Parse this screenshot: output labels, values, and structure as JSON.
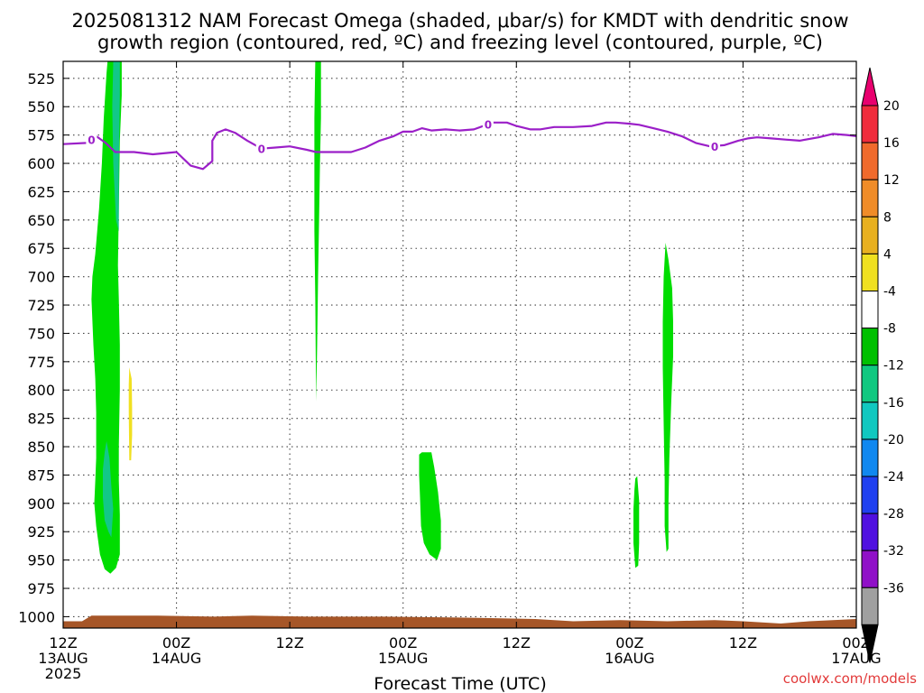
{
  "chart_data": {
    "type": "heatmap",
    "title_line1": "2025081312 NAM Forecast Omega (shaded, μbar/s) for KMDT with dendritic snow",
    "title_line2": "growth region (contoured, red, ºC) and freezing level (contoured, purple, ºC)",
    "xlabel": "Forecast Time (UTC)",
    "credit": "coolwx.com/models",
    "x_range_hours": [
      0,
      84
    ],
    "y_range_mb": [
      1010,
      510
    ],
    "y_ticks": [
      525,
      550,
      575,
      600,
      625,
      650,
      675,
      700,
      725,
      750,
      775,
      800,
      825,
      850,
      875,
      900,
      925,
      950,
      975,
      1000
    ],
    "x_ticks": [
      {
        "hour": 0,
        "line1": "12Z",
        "line2": "13AUG",
        "line3": "2025"
      },
      {
        "hour": 12,
        "line1": "00Z",
        "line2": "14AUG",
        "line3": ""
      },
      {
        "hour": 24,
        "line1": "12Z",
        "line2": "",
        "line3": ""
      },
      {
        "hour": 36,
        "line1": "00Z",
        "line2": "15AUG",
        "line3": ""
      },
      {
        "hour": 48,
        "line1": "12Z",
        "line2": "",
        "line3": ""
      },
      {
        "hour": 60,
        "line1": "00Z",
        "line2": "16AUG",
        "line3": ""
      },
      {
        "hour": 72,
        "line1": "12Z",
        "line2": "",
        "line3": ""
      },
      {
        "hour": 84,
        "line1": "00Z",
        "line2": "17AUG",
        "line3": ""
      }
    ],
    "colorbar": {
      "labels": [
        20,
        16,
        12,
        8,
        4,
        -4,
        -8,
        -12,
        -16,
        -20,
        -24,
        -28,
        -32,
        -36
      ],
      "colors": [
        "#e8006e",
        "#f02c3c",
        "#f06a2c",
        "#f08c28",
        "#e8b020",
        "#f0e020",
        "#ffffff",
        "#00c000",
        "#10c880",
        "#10c8c0",
        "#1088f0",
        "#2040f0",
        "#5010e0",
        "#9010c8",
        "#a0a0a0",
        "#000000"
      ]
    },
    "omega_regions": [
      {
        "level": "-4 to -8",
        "color": "#00dd00",
        "points": [
          [
            5.4,
            510
          ],
          [
            6.2,
            510
          ],
          [
            6.2,
            540
          ],
          [
            6.0,
            580
          ],
          [
            5.9,
            640
          ],
          [
            5.8,
            690
          ],
          [
            5.9,
            720
          ],
          [
            6.0,
            760
          ],
          [
            6.0,
            800
          ],
          [
            5.9,
            850
          ],
          [
            5.9,
            880
          ],
          [
            6.0,
            910
          ],
          [
            6.0,
            945
          ],
          [
            5.6,
            957
          ],
          [
            5.0,
            962
          ],
          [
            4.4,
            958
          ],
          [
            3.9,
            945
          ],
          [
            3.5,
            920
          ],
          [
            3.3,
            900
          ],
          [
            3.4,
            880
          ],
          [
            3.5,
            860
          ],
          [
            3.5,
            820
          ],
          [
            3.4,
            790
          ],
          [
            3.2,
            760
          ],
          [
            3.0,
            720
          ],
          [
            3.1,
            700
          ],
          [
            3.4,
            680
          ],
          [
            3.8,
            640
          ],
          [
            4.1,
            600
          ],
          [
            4.3,
            560
          ],
          [
            4.6,
            520
          ],
          [
            4.7,
            510
          ]
        ]
      },
      {
        "level": "-8 to -12",
        "color": "#12c888",
        "points": [
          [
            5.3,
            510
          ],
          [
            6.0,
            510
          ],
          [
            6.0,
            540
          ],
          [
            5.9,
            600
          ],
          [
            5.9,
            660
          ],
          [
            5.6,
            650
          ],
          [
            5.3,
            600
          ],
          [
            5.2,
            550
          ]
        ]
      },
      {
        "level": "-8 to -12",
        "color": "#12c888",
        "points": [
          [
            4.2,
            870
          ],
          [
            4.4,
            855
          ],
          [
            4.6,
            845
          ],
          [
            4.9,
            860
          ],
          [
            5.1,
            885
          ],
          [
            5.3,
            905
          ],
          [
            5.1,
            930
          ],
          [
            4.8,
            925
          ],
          [
            4.4,
            915
          ],
          [
            4.2,
            895
          ]
        ]
      },
      {
        "level": "-4 to -8",
        "color": "#00dd00",
        "points": [
          [
            26.7,
            510
          ],
          [
            27.3,
            510
          ],
          [
            27.3,
            560
          ],
          [
            27.2,
            600
          ],
          [
            27.1,
            650
          ],
          [
            27.0,
            700
          ],
          [
            26.9,
            760
          ],
          [
            26.8,
            810
          ],
          [
            26.75,
            770
          ],
          [
            26.7,
            720
          ],
          [
            26.6,
            660
          ],
          [
            26.6,
            600
          ],
          [
            26.6,
            560
          ]
        ]
      },
      {
        "level": "-4 to -8",
        "color": "#00dd00",
        "points": [
          [
            37.7,
            857
          ],
          [
            38.0,
            855
          ],
          [
            39.0,
            855
          ],
          [
            39.3,
            868
          ],
          [
            39.7,
            890
          ],
          [
            40.0,
            915
          ],
          [
            40.0,
            940
          ],
          [
            39.6,
            950
          ],
          [
            38.8,
            945
          ],
          [
            38.2,
            935
          ],
          [
            37.9,
            920
          ],
          [
            37.8,
            895
          ],
          [
            37.7,
            875
          ]
        ]
      },
      {
        "level": "-4 to -8",
        "color": "#00dd00",
        "points": [
          [
            60.6,
            878
          ],
          [
            60.8,
            876
          ],
          [
            61.0,
            898
          ],
          [
            61.0,
            935
          ],
          [
            60.9,
            955
          ],
          [
            60.6,
            957
          ],
          [
            60.4,
            935
          ],
          [
            60.4,
            905
          ],
          [
            60.5,
            888
          ]
        ]
      },
      {
        "level": "-4 to -8",
        "color": "#00dd00",
        "points": [
          [
            63.8,
            670
          ],
          [
            64.1,
            685
          ],
          [
            64.5,
            710
          ],
          [
            64.6,
            740
          ],
          [
            64.6,
            770
          ],
          [
            64.4,
            810
          ],
          [
            64.2,
            860
          ],
          [
            64.1,
            900
          ],
          [
            64.1,
            940
          ],
          [
            63.9,
            943
          ],
          [
            63.7,
            920
          ],
          [
            63.7,
            880
          ],
          [
            63.6,
            830
          ],
          [
            63.5,
            780
          ],
          [
            63.5,
            740
          ],
          [
            63.6,
            700
          ]
        ]
      },
      {
        "level": "4 to 8",
        "color": "#f0e020",
        "points": [
          [
            7.0,
            780
          ],
          [
            7.25,
            790
          ],
          [
            7.3,
            815
          ],
          [
            7.3,
            840
          ],
          [
            7.2,
            862
          ],
          [
            7.0,
            862
          ],
          [
            6.95,
            820
          ],
          [
            6.95,
            795
          ]
        ]
      }
    ],
    "freezing_level": {
      "label": "0",
      "label_hours": [
        3,
        21,
        45,
        69
      ],
      "points": [
        [
          0,
          583
        ],
        [
          2.5,
          582
        ],
        [
          3.5,
          576
        ],
        [
          4.5,
          582
        ],
        [
          5.5,
          590
        ],
        [
          7.5,
          590
        ],
        [
          9.5,
          592
        ],
        [
          12,
          590
        ],
        [
          13.5,
          602
        ],
        [
          14.8,
          605
        ],
        [
          15.8,
          598
        ],
        [
          15.8,
          580
        ],
        [
          16.3,
          573
        ],
        [
          17.2,
          570
        ],
        [
          18.2,
          573
        ],
        [
          19.5,
          580
        ],
        [
          21,
          587
        ],
        [
          22.5,
          586
        ],
        [
          24,
          585
        ],
        [
          25.8,
          588
        ],
        [
          26.8,
          590
        ],
        [
          28.5,
          590
        ],
        [
          30.5,
          590
        ],
        [
          32,
          586
        ],
        [
          33.5,
          580
        ],
        [
          35,
          576
        ],
        [
          36,
          572
        ],
        [
          37,
          572
        ],
        [
          38,
          569
        ],
        [
          39,
          571
        ],
        [
          40.5,
          570
        ],
        [
          42,
          571
        ],
        [
          43.5,
          570
        ],
        [
          45.5,
          564
        ],
        [
          47,
          564
        ],
        [
          48,
          567
        ],
        [
          49.5,
          570
        ],
        [
          50.5,
          570
        ],
        [
          52,
          568
        ],
        [
          54,
          568
        ],
        [
          56,
          567
        ],
        [
          57.5,
          564
        ],
        [
          58.5,
          564
        ],
        [
          60,
          565
        ],
        [
          61,
          566
        ],
        [
          62.5,
          569
        ],
        [
          64,
          572
        ],
        [
          65.5,
          576
        ],
        [
          67,
          582
        ],
        [
          68.5,
          585
        ],
        [
          70,
          584
        ],
        [
          71.5,
          580
        ],
        [
          72.5,
          578
        ],
        [
          73.5,
          577
        ],
        [
          75,
          578
        ],
        [
          76.5,
          579
        ],
        [
          78,
          580
        ],
        [
          80,
          577
        ],
        [
          81.5,
          574
        ],
        [
          83,
          575
        ],
        [
          84,
          576
        ]
      ]
    },
    "terrain_top": {
      "color": "#a65628",
      "points": [
        [
          0,
          1004
        ],
        [
          2,
          1004
        ],
        [
          3,
          999
        ],
        [
          6,
          999
        ],
        [
          10,
          999
        ],
        [
          16,
          1000
        ],
        [
          20,
          999
        ],
        [
          26,
          1000
        ],
        [
          34,
          1000
        ],
        [
          44,
          1001
        ],
        [
          50,
          1002
        ],
        [
          54,
          1004
        ],
        [
          59,
          1003
        ],
        [
          64,
          1004
        ],
        [
          69,
          1003
        ],
        [
          72,
          1004
        ],
        [
          76,
          1006
        ],
        [
          79,
          1004
        ],
        [
          84,
          1002
        ]
      ]
    },
    "dgz_contours": []
  }
}
